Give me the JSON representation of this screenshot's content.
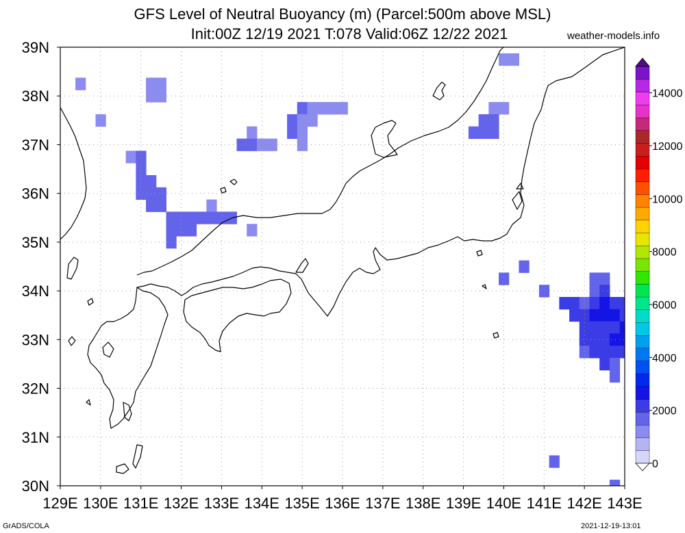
{
  "title": "GFS Level of Neutral Buoyancy (m) (Parcel:500m above MSL)",
  "subtitle": "Init:00Z 12/19 2021 T:078 Valid:06Z 12/22 2021",
  "credit": "weather-models.info",
  "footer_left": "GrADS/COLA",
  "footer_right": "2021-12-19-13:01",
  "map": {
    "lon_range": [
      129,
      143
    ],
    "lat_range": [
      30,
      39
    ],
    "lon_labels": [
      "129E",
      "130E",
      "131E",
      "132E",
      "133E",
      "134E",
      "135E",
      "136E",
      "137E",
      "138E",
      "139E",
      "140E",
      "141E",
      "142E",
      "143E"
    ],
    "lat_labels": [
      "30N",
      "31N",
      "32N",
      "33N",
      "34N",
      "35N",
      "36N",
      "37N",
      "38N",
      "39N"
    ],
    "grid": true,
    "coastline_color": "#000000",
    "cells": [
      {
        "lon": 140.0,
        "lat": 38.75,
        "value": 1500
      },
      {
        "lon": 140.25,
        "lat": 38.75,
        "value": 1600
      },
      {
        "lon": 129.5,
        "lat": 38.25,
        "value": 1600
      },
      {
        "lon": 131.25,
        "lat": 38.25,
        "value": 1300
      },
      {
        "lon": 131.5,
        "lat": 38.25,
        "value": 1500
      },
      {
        "lon": 131.25,
        "lat": 38.0,
        "value": 1400
      },
      {
        "lon": 131.5,
        "lat": 38.0,
        "value": 1300
      },
      {
        "lon": 130.0,
        "lat": 37.5,
        "value": 1600
      },
      {
        "lon": 135.0,
        "lat": 37.75,
        "value": 1700
      },
      {
        "lon": 135.25,
        "lat": 37.75,
        "value": 1600
      },
      {
        "lon": 135.5,
        "lat": 37.75,
        "value": 1600
      },
      {
        "lon": 135.75,
        "lat": 37.75,
        "value": 1600
      },
      {
        "lon": 136.0,
        "lat": 37.75,
        "value": 1600
      },
      {
        "lon": 134.75,
        "lat": 37.5,
        "value": 1700
      },
      {
        "lon": 135.0,
        "lat": 37.5,
        "value": 1600
      },
      {
        "lon": 135.25,
        "lat": 37.5,
        "value": 1600
      },
      {
        "lon": 134.75,
        "lat": 37.25,
        "value": 1700
      },
      {
        "lon": 135.0,
        "lat": 37.25,
        "value": 1600
      },
      {
        "lon": 135.0,
        "lat": 37.0,
        "value": 1600
      },
      {
        "lon": 133.75,
        "lat": 37.25,
        "value": 1600
      },
      {
        "lon": 133.5,
        "lat": 37.0,
        "value": 1700
      },
      {
        "lon": 133.75,
        "lat": 37.0,
        "value": 1700
      },
      {
        "lon": 134.0,
        "lat": 37.0,
        "value": 1600
      },
      {
        "lon": 134.25,
        "lat": 37.0,
        "value": 1600
      },
      {
        "lon": 139.75,
        "lat": 37.75,
        "value": 1600
      },
      {
        "lon": 140.0,
        "lat": 37.75,
        "value": 1600
      },
      {
        "lon": 139.5,
        "lat": 37.5,
        "value": 1700
      },
      {
        "lon": 139.75,
        "lat": 37.5,
        "value": 1700
      },
      {
        "lon": 139.25,
        "lat": 37.25,
        "value": 1900
      },
      {
        "lon": 139.5,
        "lat": 37.25,
        "value": 1700
      },
      {
        "lon": 139.75,
        "lat": 37.25,
        "value": 1700
      },
      {
        "lon": 130.75,
        "lat": 36.75,
        "value": 1600
      },
      {
        "lon": 131.0,
        "lat": 36.75,
        "value": 1700
      },
      {
        "lon": 131.0,
        "lat": 36.5,
        "value": 1800
      },
      {
        "lon": 131.0,
        "lat": 36.25,
        "value": 1800
      },
      {
        "lon": 131.25,
        "lat": 36.25,
        "value": 1800
      },
      {
        "lon": 131.0,
        "lat": 36.0,
        "value": 1800
      },
      {
        "lon": 131.25,
        "lat": 36.0,
        "value": 1900
      },
      {
        "lon": 131.5,
        "lat": 36.0,
        "value": 1700
      },
      {
        "lon": 131.25,
        "lat": 35.75,
        "value": 1800
      },
      {
        "lon": 131.5,
        "lat": 35.75,
        "value": 1800
      },
      {
        "lon": 132.75,
        "lat": 35.75,
        "value": 1600
      },
      {
        "lon": 131.75,
        "lat": 35.5,
        "value": 1700
      },
      {
        "lon": 132.0,
        "lat": 35.5,
        "value": 1700
      },
      {
        "lon": 132.25,
        "lat": 35.5,
        "value": 1700
      },
      {
        "lon": 132.5,
        "lat": 35.5,
        "value": 1700
      },
      {
        "lon": 132.75,
        "lat": 35.5,
        "value": 1700
      },
      {
        "lon": 133.0,
        "lat": 35.5,
        "value": 1700
      },
      {
        "lon": 133.25,
        "lat": 35.5,
        "value": 1700
      },
      {
        "lon": 131.75,
        "lat": 35.25,
        "value": 1800
      },
      {
        "lon": 132.0,
        "lat": 35.25,
        "value": 1800
      },
      {
        "lon": 132.25,
        "lat": 35.25,
        "value": 1800
      },
      {
        "lon": 131.75,
        "lat": 35.0,
        "value": 1800
      },
      {
        "lon": 133.75,
        "lat": 35.25,
        "value": 1600
      },
      {
        "lon": 140.5,
        "lat": 34.5,
        "value": 1700
      },
      {
        "lon": 140.0,
        "lat": 34.25,
        "value": 2100
      },
      {
        "lon": 141.0,
        "lat": 34.0,
        "value": 2000
      },
      {
        "lon": 142.25,
        "lat": 34.25,
        "value": 1800
      },
      {
        "lon": 142.5,
        "lat": 34.25,
        "value": 1900
      },
      {
        "lon": 142.25,
        "lat": 34.0,
        "value": 2000
      },
      {
        "lon": 142.5,
        "lat": 34.0,
        "value": 2200
      },
      {
        "lon": 141.5,
        "lat": 33.75,
        "value": 2500
      },
      {
        "lon": 141.75,
        "lat": 33.75,
        "value": 2300
      },
      {
        "lon": 142.0,
        "lat": 33.75,
        "value": 2100
      },
      {
        "lon": 142.25,
        "lat": 33.75,
        "value": 2400
      },
      {
        "lon": 142.5,
        "lat": 33.75,
        "value": 2700
      },
      {
        "lon": 142.75,
        "lat": 33.75,
        "value": 2500
      },
      {
        "lon": 143.0,
        "lat": 33.75,
        "value": 2300
      },
      {
        "lon": 141.75,
        "lat": 33.5,
        "value": 2200
      },
      {
        "lon": 142.0,
        "lat": 33.5,
        "value": 2300
      },
      {
        "lon": 142.25,
        "lat": 33.5,
        "value": 2700
      },
      {
        "lon": 142.5,
        "lat": 33.5,
        "value": 2800
      },
      {
        "lon": 142.75,
        "lat": 33.5,
        "value": 2600
      },
      {
        "lon": 143.0,
        "lat": 33.5,
        "value": 2400
      },
      {
        "lon": 142.0,
        "lat": 33.25,
        "value": 2300
      },
      {
        "lon": 142.25,
        "lat": 33.25,
        "value": 2400
      },
      {
        "lon": 142.5,
        "lat": 33.25,
        "value": 2500
      },
      {
        "lon": 142.75,
        "lat": 33.25,
        "value": 2400
      },
      {
        "lon": 143.0,
        "lat": 33.25,
        "value": 2900
      },
      {
        "lon": 142.0,
        "lat": 33.0,
        "value": 2300
      },
      {
        "lon": 142.25,
        "lat": 33.0,
        "value": 2400
      },
      {
        "lon": 142.5,
        "lat": 33.0,
        "value": 2500
      },
      {
        "lon": 142.75,
        "lat": 33.0,
        "value": 2600
      },
      {
        "lon": 143.0,
        "lat": 33.0,
        "value": 2700
      },
      {
        "lon": 142.0,
        "lat": 32.75,
        "value": 2100
      },
      {
        "lon": 142.25,
        "lat": 32.75,
        "value": 2300
      },
      {
        "lon": 142.5,
        "lat": 32.75,
        "value": 2400
      },
      {
        "lon": 142.75,
        "lat": 32.75,
        "value": 2300
      },
      {
        "lon": 143.0,
        "lat": 32.75,
        "value": 2200
      },
      {
        "lon": 142.5,
        "lat": 32.5,
        "value": 2300
      },
      {
        "lon": 142.75,
        "lat": 32.5,
        "value": 2100
      },
      {
        "lon": 142.75,
        "lat": 32.25,
        "value": 1900
      },
      {
        "lon": 141.25,
        "lat": 30.5,
        "value": 2000
      },
      {
        "lon": 142.75,
        "lat": 30.0,
        "value": 1700
      }
    ]
  },
  "colorbar": {
    "labels": [
      "0",
      "2000",
      "4000",
      "6000",
      "8000",
      "10000",
      "12000",
      "14000"
    ],
    "colors": [
      "#ffffff",
      "#d6d6f8",
      "#b4b4f5",
      "#8c8cf0",
      "#6464eb",
      "#3c3ce6",
      "#1414e6",
      "#0028f0",
      "#0050f5",
      "#0078f5",
      "#00a0f0",
      "#00c8e6",
      "#00dcc8",
      "#00e68c",
      "#00e650",
      "#32e600",
      "#78e600",
      "#b4e600",
      "#e6e600",
      "#ffd200",
      "#ffaa00",
      "#ff8200",
      "#ff5000",
      "#ff1e00",
      "#e60000",
      "#c81e1e",
      "#aa2828",
      "#c8287a",
      "#e632c8",
      "#f03cf0",
      "#b428e6",
      "#7a14c8",
      "#500a8c"
    ]
  }
}
